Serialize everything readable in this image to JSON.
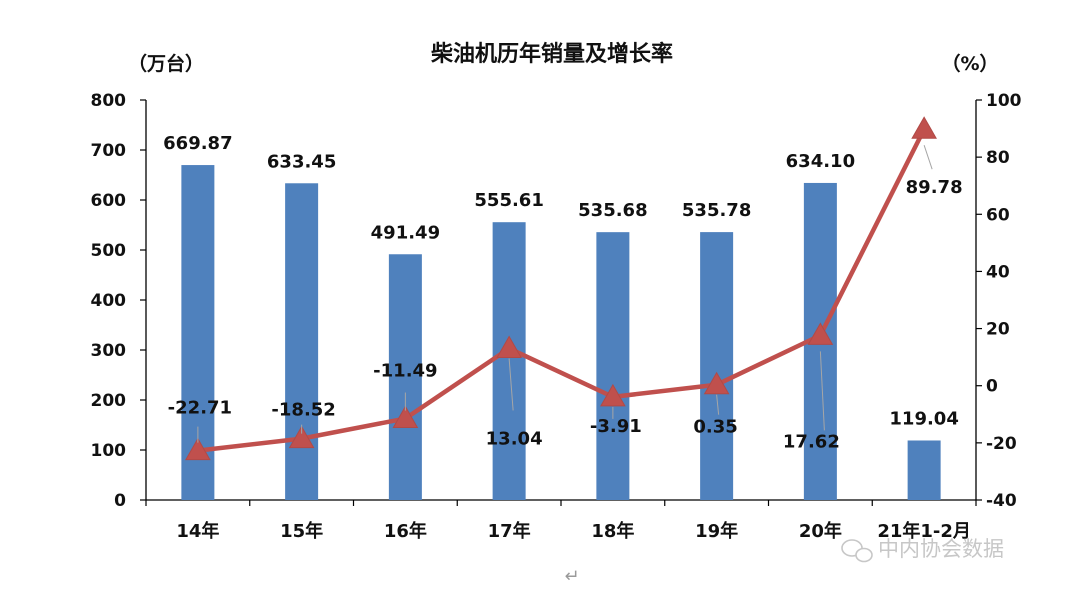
{
  "chart_data": {
    "type": "bar",
    "title": "柴油机历年销量及增长率",
    "y_left_unit": "（万台）",
    "y_right_unit": "（%）",
    "categories": [
      "14年",
      "15年",
      "16年",
      "17年",
      "18年",
      "19年",
      "20年",
      "21年1-2月"
    ],
    "series": [
      {
        "type": "bar",
        "axis": "left",
        "values": [
          669.87,
          633.45,
          491.49,
          555.61,
          535.68,
          535.78,
          634.1,
          119.04
        ],
        "labels": [
          "669.87",
          "633.45",
          "491.49",
          "555.61",
          "535.68",
          "535.78",
          "634.10",
          "119.04"
        ],
        "color": "#4f81bd"
      },
      {
        "type": "line",
        "axis": "right",
        "values": [
          -22.71,
          -18.52,
          -11.49,
          13.04,
          -3.91,
          0.35,
          17.62,
          89.78
        ],
        "labels": [
          "-22.71",
          "-18.52",
          "-11.49",
          "13.04",
          "-3.91",
          "0.35",
          "17.62",
          "89.78"
        ],
        "color": "#c0504d"
      }
    ],
    "y_left": {
      "range": [
        0,
        800
      ],
      "ticks": [
        "0",
        "100",
        "200",
        "300",
        "400",
        "500",
        "600",
        "700",
        "800"
      ]
    },
    "y_right": {
      "range": [
        -40,
        100
      ],
      "ticks": [
        "-40",
        "-20",
        "0",
        "20",
        "40",
        "60",
        "80",
        "100"
      ]
    },
    "grid": false,
    "legend": "none"
  },
  "watermark": "中内协会数据",
  "return_mark": "↵"
}
